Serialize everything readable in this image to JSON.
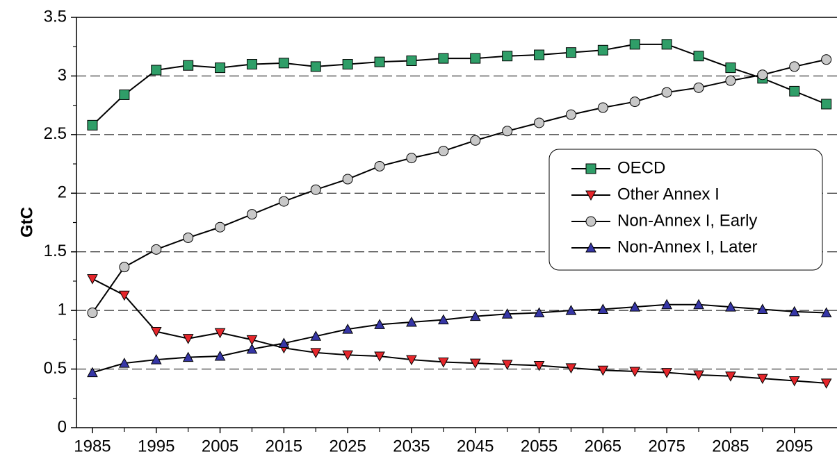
{
  "chart_data": {
    "type": "line",
    "ylabel": "GtC",
    "x": [
      1985,
      1990,
      1995,
      2000,
      2005,
      2010,
      2015,
      2020,
      2025,
      2030,
      2035,
      2040,
      2045,
      2050,
      2055,
      2060,
      2065,
      2070,
      2075,
      2080,
      2085,
      2090,
      2095,
      2100
    ],
    "xlim": [
      1982.5,
      2102.5
    ],
    "xticks": [
      1985,
      1995,
      2005,
      2015,
      2025,
      2035,
      2045,
      2055,
      2065,
      2075,
      2085,
      2095
    ],
    "ylim": [
      0,
      3.5
    ],
    "yticks": [
      0,
      0.5,
      1,
      1.5,
      2,
      2.5,
      3,
      3.5
    ],
    "grid": true,
    "legend": "upper right",
    "series": [
      {
        "name": "OECD",
        "color": "#2f9e68",
        "marker": "square",
        "values": [
          2.58,
          2.84,
          3.05,
          3.09,
          3.07,
          3.1,
          3.11,
          3.08,
          3.1,
          3.12,
          3.13,
          3.15,
          3.15,
          3.17,
          3.18,
          3.2,
          3.22,
          3.27,
          3.27,
          3.17,
          3.07,
          2.98,
          2.87,
          2.76
        ]
      },
      {
        "name": "Other Annex I",
        "color": "#e5262b",
        "marker": "triangle-down",
        "values": [
          1.27,
          1.13,
          0.82,
          0.76,
          0.81,
          0.75,
          0.68,
          0.64,
          0.62,
          0.61,
          0.58,
          0.56,
          0.55,
          0.54,
          0.53,
          0.51,
          0.49,
          0.48,
          0.47,
          0.45,
          0.44,
          0.42,
          0.4,
          0.38
        ]
      },
      {
        "name": "Non-Annex I, Early",
        "color": "#c8c8c8",
        "marker": "circle",
        "values": [
          0.98,
          1.37,
          1.52,
          1.62,
          1.71,
          1.82,
          1.93,
          2.03,
          2.12,
          2.23,
          2.3,
          2.36,
          2.45,
          2.53,
          2.6,
          2.67,
          2.73,
          2.78,
          2.86,
          2.9,
          2.96,
          3.01,
          3.08,
          3.14
        ]
      },
      {
        "name": "Non-Annex I, Later",
        "color": "#3636a6",
        "marker": "triangle-up",
        "values": [
          0.47,
          0.55,
          0.58,
          0.6,
          0.61,
          0.67,
          0.72,
          0.78,
          0.84,
          0.88,
          0.9,
          0.92,
          0.95,
          0.97,
          0.98,
          1.0,
          1.01,
          1.03,
          1.05,
          1.05,
          1.03,
          1.01,
          0.99,
          0.98
        ]
      }
    ]
  }
}
